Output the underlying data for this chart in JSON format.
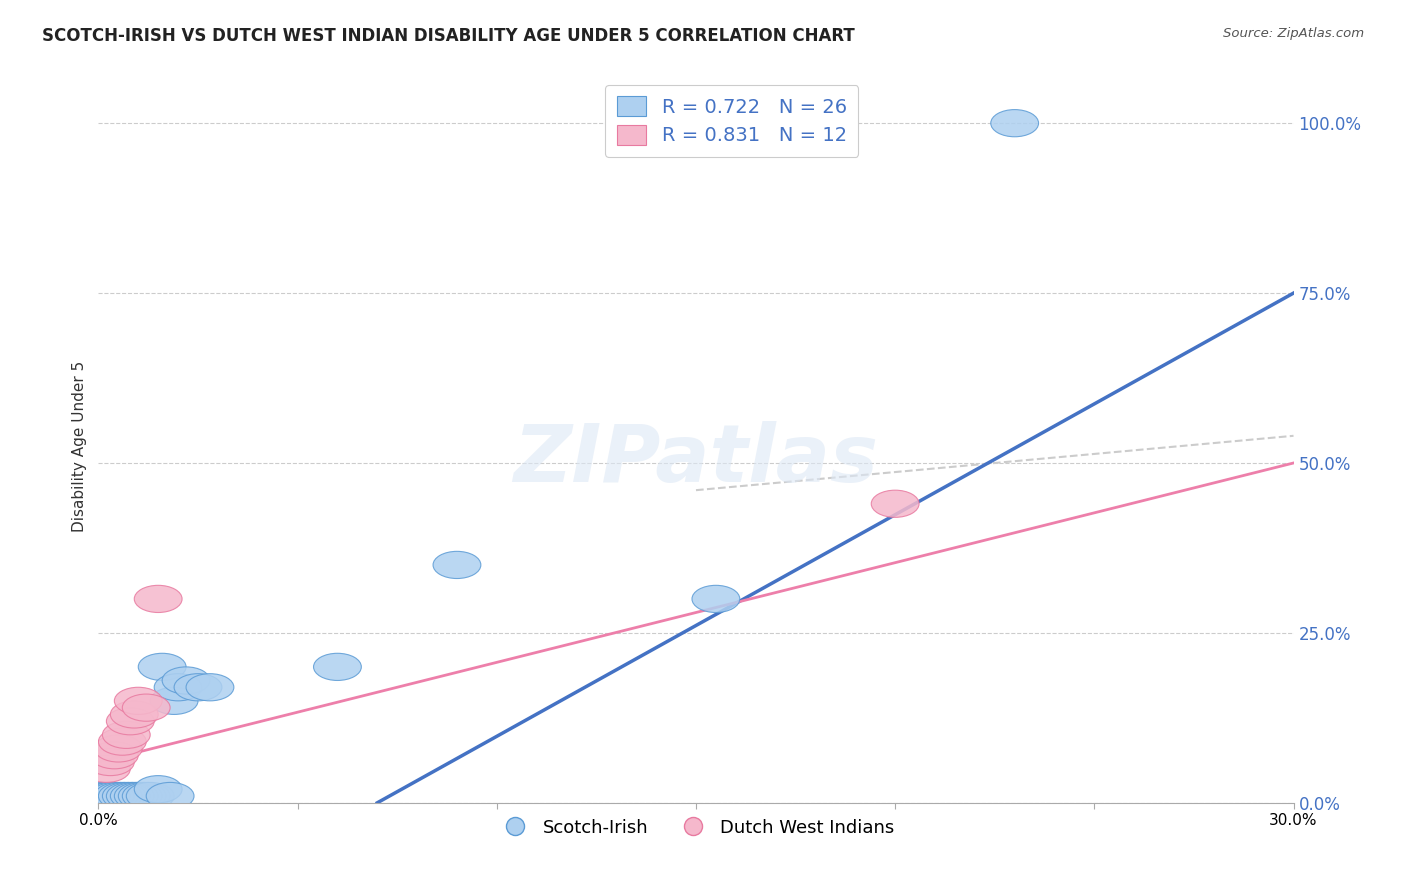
{
  "title": "SCOTCH-IRISH VS DUTCH WEST INDIAN DISABILITY AGE UNDER 5 CORRELATION CHART",
  "source": "Source: ZipAtlas.com",
  "ylabel": "Disability Age Under 5",
  "xlim": [
    0,
    0.3
  ],
  "ylim": [
    0,
    1.05
  ],
  "yticks": [
    0.0,
    0.25,
    0.5,
    0.75,
    1.0
  ],
  "ytick_labels": [
    "0.0%",
    "25.0%",
    "50.0%",
    "75.0%",
    "100.0%"
  ],
  "xticks": [
    0.0,
    0.05,
    0.1,
    0.15,
    0.2,
    0.25,
    0.3
  ],
  "xtick_labels": [
    "0.0%",
    "",
    "",
    "",
    "",
    "",
    "30.0%"
  ],
  "blue_scatter_x": [
    0.001,
    0.002,
    0.003,
    0.003,
    0.004,
    0.005,
    0.006,
    0.007,
    0.008,
    0.009,
    0.01,
    0.011,
    0.012,
    0.013,
    0.015,
    0.016,
    0.018,
    0.019,
    0.02,
    0.022,
    0.025,
    0.028,
    0.06,
    0.09,
    0.155,
    0.23
  ],
  "blue_scatter_y": [
    0.01,
    0.01,
    0.01,
    0.01,
    0.01,
    0.01,
    0.01,
    0.01,
    0.01,
    0.01,
    0.01,
    0.01,
    0.01,
    0.01,
    0.02,
    0.2,
    0.01,
    0.15,
    0.17,
    0.18,
    0.17,
    0.17,
    0.2,
    0.35,
    0.3,
    1.0
  ],
  "pink_scatter_x": [
    0.002,
    0.003,
    0.004,
    0.005,
    0.006,
    0.007,
    0.008,
    0.009,
    0.01,
    0.012,
    0.015,
    0.2
  ],
  "pink_scatter_y": [
    0.05,
    0.06,
    0.07,
    0.08,
    0.09,
    0.1,
    0.12,
    0.13,
    0.15,
    0.14,
    0.3,
    0.44
  ],
  "blue_color": "#aed0f0",
  "pink_color": "#f5b8cc",
  "blue_edge_color": "#5b9bd5",
  "pink_edge_color": "#e87aa0",
  "blue_line_color": "#4472c4",
  "pink_line_color": "#ed7faa",
  "dashed_line_color": "#cccccc",
  "legend_blue_label": "Scotch-Irish",
  "legend_pink_label": "Dutch West Indians",
  "watermark": "ZIPatlas",
  "background_color": "#ffffff",
  "grid_color": "#cccccc",
  "blue_line_x0": 0.07,
  "blue_line_y0": 0.0,
  "blue_line_x1": 0.3,
  "blue_line_y1": 0.75,
  "pink_line_x0": 0.0,
  "pink_line_y0": 0.06,
  "pink_line_x1": 0.3,
  "pink_line_y1": 0.5,
  "dash_line_x0": 0.15,
  "dash_line_y0": 0.46,
  "dash_line_x1": 0.3,
  "dash_line_y1": 0.54,
  "tick_color": "#4472c4",
  "yaxis_label_color": "#4472c4"
}
